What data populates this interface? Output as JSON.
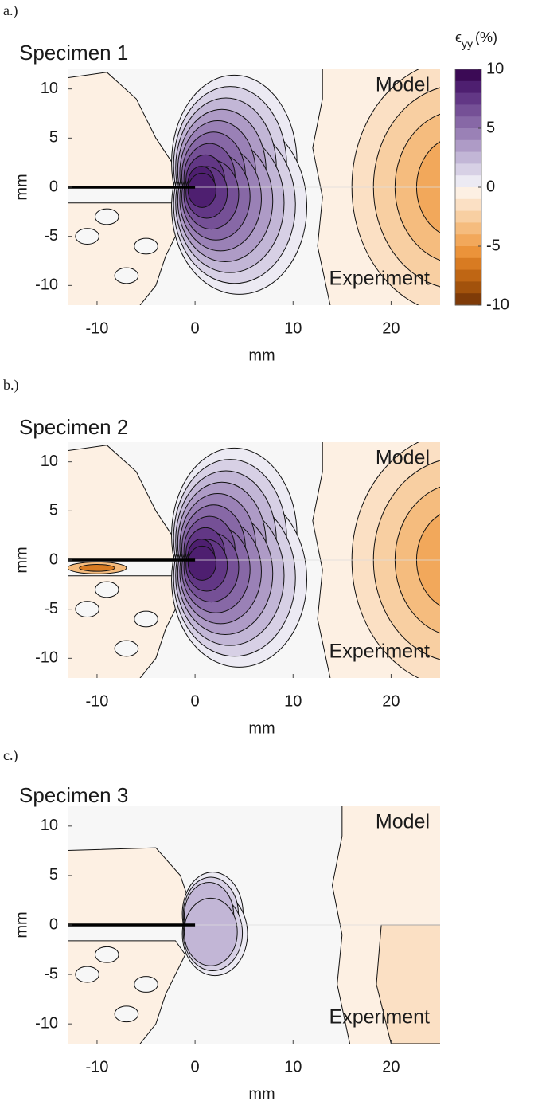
{
  "chart_data": [
    {
      "type": "contour",
      "panel_label": "a.)",
      "title": "Specimen 1",
      "annotations": [
        "Model",
        "Experiment"
      ],
      "xlabel": "mm",
      "ylabel": "mm",
      "xlim": [
        -13,
        25
      ],
      "ylim": [
        -12,
        12
      ],
      "xticks": [
        -10,
        0,
        10,
        20
      ],
      "yticks": [
        -10,
        -5,
        0,
        5,
        10
      ],
      "colorbar": {
        "symbol": "ϵ",
        "subscript": "yy",
        "unit": "(%)",
        "lim": [
          -10,
          10
        ],
        "ticks": [
          -10,
          -5,
          0,
          5,
          10
        ],
        "colors": [
          "#3b0a55",
          "#4e1f70",
          "#623785",
          "#755096",
          "#8768a6",
          "#9a81b6",
          "#ae9bc6",
          "#c2b6d6",
          "#d7d0e5",
          "#eceaf3",
          "#fdf0e3",
          "#fbe0c4",
          "#f8cfa2",
          "#f5bc7e",
          "#f2a85b",
          "#eb933a",
          "#d87b22",
          "#bf6614",
          "#a2520c",
          "#7f3b08"
        ]
      }
    },
    {
      "type": "contour",
      "panel_label": "b.)",
      "title": "Specimen 2",
      "annotations": [
        "Model",
        "Experiment"
      ],
      "xlabel": "mm",
      "ylabel": "mm",
      "xlim": [
        -13,
        25
      ],
      "ylim": [
        -12,
        12
      ],
      "xticks": [
        -10,
        0,
        10,
        20
      ],
      "yticks": [
        -10,
        -5,
        0,
        5,
        10
      ]
    },
    {
      "type": "contour",
      "panel_label": "c.)",
      "title": "Specimen 3",
      "annotations": [
        "Model",
        "Experiment"
      ],
      "xlabel": "mm",
      "ylabel": "mm",
      "xlim": [
        -13,
        25
      ],
      "ylim": [
        -12,
        12
      ],
      "xticks": [
        -10,
        0,
        10,
        20
      ],
      "yticks": [
        -10,
        -5,
        0,
        5,
        10
      ]
    }
  ]
}
